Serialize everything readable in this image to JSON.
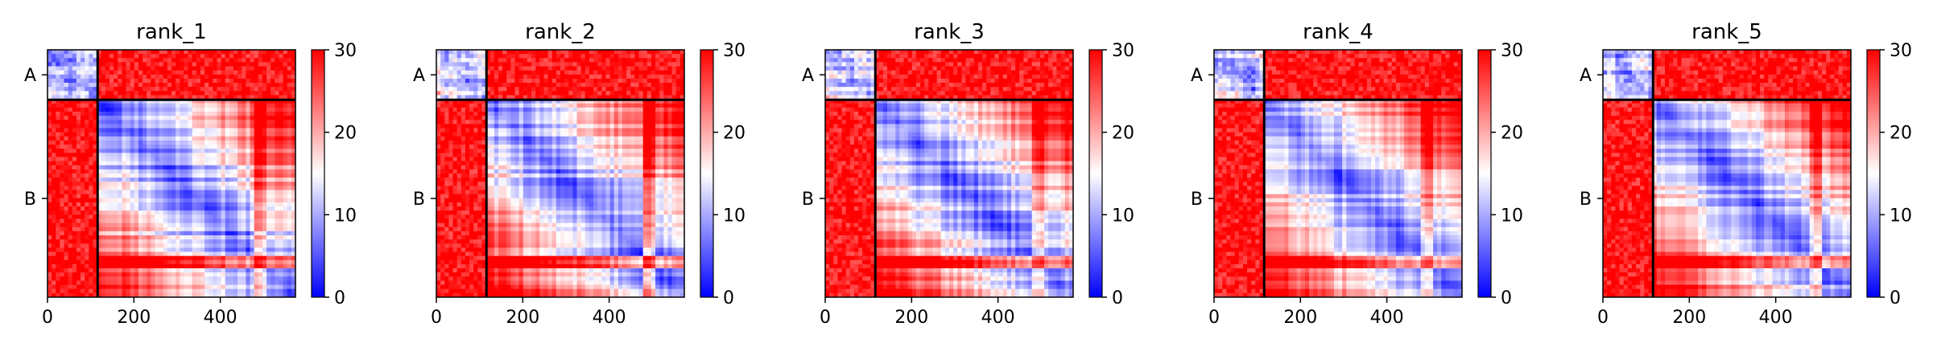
{
  "chart_data": [
    {
      "type": "heatmap",
      "title": "rank_1",
      "x_ticks": [
        0,
        200,
        400
      ],
      "xlim": [
        0,
        574
      ],
      "chain_labels": [
        "A",
        "B"
      ],
      "chain_boundary": 116,
      "colorbar": {
        "ticks": [
          0,
          10,
          20,
          30
        ],
        "range": [
          0,
          30
        ],
        "colors": [
          "#0000ff",
          "#ffffff",
          "#ff0000"
        ]
      }
    },
    {
      "type": "heatmap",
      "title": "rank_2",
      "x_ticks": [
        0,
        200,
        400
      ],
      "xlim": [
        0,
        574
      ],
      "chain_labels": [
        "A",
        "B"
      ],
      "chain_boundary": 116,
      "colorbar": {
        "ticks": [
          0,
          10,
          20,
          30
        ],
        "range": [
          0,
          30
        ],
        "colors": [
          "#0000ff",
          "#ffffff",
          "#ff0000"
        ]
      }
    },
    {
      "type": "heatmap",
      "title": "rank_3",
      "x_ticks": [
        0,
        200,
        400
      ],
      "xlim": [
        0,
        574
      ],
      "chain_labels": [
        "A",
        "B"
      ],
      "chain_boundary": 116,
      "colorbar": {
        "ticks": [
          0,
          10,
          20,
          30
        ],
        "range": [
          0,
          30
        ],
        "colors": [
          "#0000ff",
          "#ffffff",
          "#ff0000"
        ]
      }
    },
    {
      "type": "heatmap",
      "title": "rank_4",
      "x_ticks": [
        0,
        200,
        400
      ],
      "xlim": [
        0,
        574
      ],
      "chain_labels": [
        "A",
        "B"
      ],
      "chain_boundary": 116,
      "colorbar": {
        "ticks": [
          0,
          10,
          20,
          30
        ],
        "range": [
          0,
          30
        ],
        "colors": [
          "#0000ff",
          "#ffffff",
          "#ff0000"
        ]
      }
    },
    {
      "type": "heatmap",
      "title": "rank_5",
      "x_ticks": [
        0,
        200,
        400
      ],
      "xlim": [
        0,
        574
      ],
      "chain_labels": [
        "A",
        "B"
      ],
      "chain_boundary": 116,
      "colorbar": {
        "ticks": [
          0,
          10,
          20,
          30
        ],
        "range": [
          0,
          30
        ],
        "colors": [
          "#0000ff",
          "#ffffff",
          "#ff0000"
        ]
      }
    }
  ]
}
